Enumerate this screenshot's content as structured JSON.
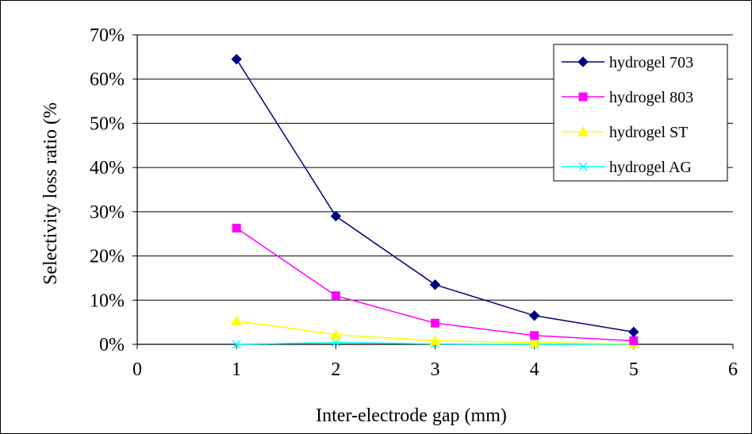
{
  "chart_data": {
    "type": "line",
    "title": "",
    "xlabel": "Inter-electrode gap (mm)",
    "ylabel": "Selectivity loss ratio (%",
    "xlim": [
      0,
      6
    ],
    "ylim": [
      0,
      70
    ],
    "x_ticks": [
      "0",
      "1",
      "2",
      "3",
      "4",
      "5",
      "6"
    ],
    "y_ticks": [
      "0%",
      "10%",
      "20%",
      "30%",
      "40%",
      "50%",
      "60%",
      "70%"
    ],
    "grid": "horizontal",
    "legend_position": "top-right",
    "series": [
      {
        "name": "hydrogel 703",
        "color": "#000080",
        "marker": "diamond",
        "x": [
          1,
          2,
          3,
          4,
          5
        ],
        "y": [
          64.5,
          29.0,
          13.5,
          6.5,
          2.8
        ]
      },
      {
        "name": "hydrogel 803",
        "color": "#ff00ff",
        "marker": "square",
        "x": [
          1,
          2,
          3,
          4,
          5
        ],
        "y": [
          26.3,
          11.0,
          4.8,
          2.0,
          0.8
        ]
      },
      {
        "name": "hydrogel ST",
        "color": "#ffff00",
        "marker": "triangle",
        "x": [
          1,
          2,
          3,
          4,
          5
        ],
        "y": [
          5.3,
          2.2,
          0.8,
          0.4,
          0.1
        ]
      },
      {
        "name": "hydrogel AG",
        "color": "#00ffff",
        "marker": "x",
        "x": [
          1,
          2,
          3,
          4,
          5
        ],
        "y": [
          0.0,
          0.4,
          0.1,
          0.0,
          0.0
        ]
      }
    ]
  }
}
